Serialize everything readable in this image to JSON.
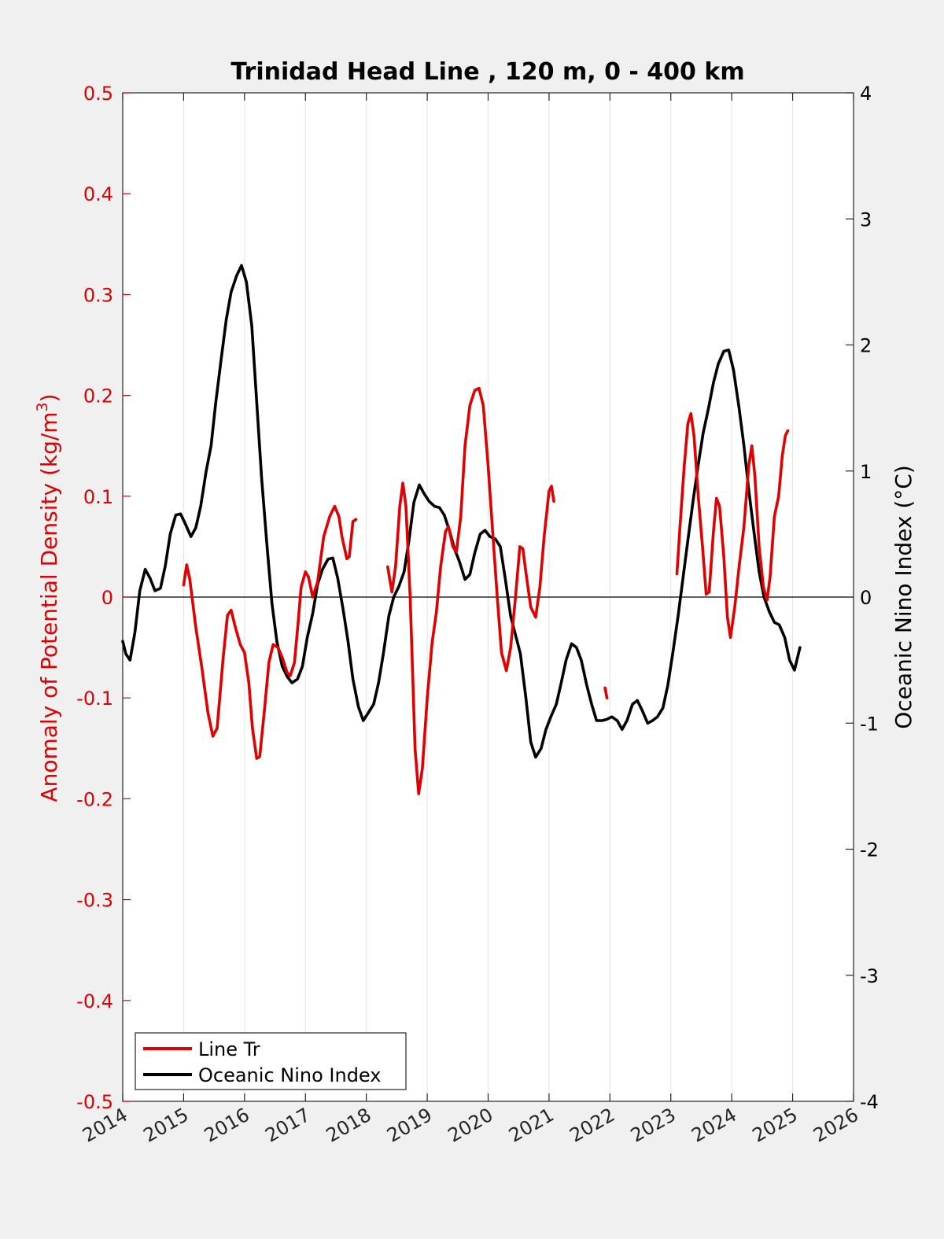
{
  "chart_data": {
    "type": "line",
    "title": "Trinidad Head Line , 120 m, 0 - 400 km",
    "ylabel_left": "Anomaly of Potential Density (kg/m",
    "ylabel_left_sup": "3",
    "ylabel_left_close": ")",
    "ylabel_right": "Oceanic Nino Index (°C)",
    "xlim": [
      2014,
      2026
    ],
    "ylim_left": [
      -0.5,
      0.5
    ],
    "ylim_right": [
      -4,
      4
    ],
    "x_ticks": [
      2014,
      2015,
      2016,
      2017,
      2018,
      2019,
      2020,
      2021,
      2022,
      2023,
      2024,
      2025,
      2026
    ],
    "x_tick_labels": [
      "2014",
      "2015",
      "2016",
      "2017",
      "2018",
      "2019",
      "2020",
      "2021",
      "2022",
      "2023",
      "2024",
      "2025",
      "2026"
    ],
    "y_left_ticks": [
      0.5,
      0.4,
      0.3,
      0.2,
      0.1,
      0,
      -0.1,
      -0.2,
      -0.3,
      -0.4,
      -0.5
    ],
    "y_left_tick_labels": [
      "0.5",
      "0.4",
      "0.3",
      "0.2",
      "0.1",
      "0",
      "-0.1",
      "-0.2",
      "-0.3",
      "-0.4",
      "-0.5"
    ],
    "y_right_ticks": [
      4,
      3,
      2,
      1,
      0,
      -1,
      -2,
      -3,
      -4
    ],
    "y_right_tick_labels": [
      "4",
      "3",
      "2",
      "1",
      "0",
      "-1",
      "-2",
      "-3",
      "-4"
    ],
    "grid": "vertical",
    "zero_line": true,
    "legend": "bottom-left",
    "colors": {
      "line_tr": "#e00000",
      "oni": "#000000",
      "left_axis": "#e00000",
      "right_axis": "#000000"
    },
    "series": [
      {
        "name": "Line Tr",
        "axis": "left",
        "segments": [
          [
            [
              2015.0,
              0.012
            ],
            [
              2015.05,
              0.032
            ],
            [
              2015.1,
              0.018
            ],
            [
              2015.2,
              -0.03
            ],
            [
              2015.3,
              -0.07
            ],
            [
              2015.4,
              -0.115
            ],
            [
              2015.48,
              -0.138
            ],
            [
              2015.55,
              -0.13
            ],
            [
              2015.65,
              -0.06
            ],
            [
              2015.72,
              -0.018
            ],
            [
              2015.78,
              -0.013
            ],
            [
              2015.85,
              -0.03
            ],
            [
              2015.93,
              -0.047
            ],
            [
              2016.0,
              -0.055
            ],
            [
              2016.07,
              -0.085
            ],
            [
              2016.13,
              -0.13
            ],
            [
              2016.2,
              -0.16
            ],
            [
              2016.25,
              -0.158
            ],
            [
              2016.33,
              -0.11
            ],
            [
              2016.4,
              -0.065
            ],
            [
              2016.47,
              -0.047
            ],
            [
              2016.55,
              -0.05
            ],
            [
              2016.62,
              -0.06
            ],
            [
              2016.7,
              -0.075
            ],
            [
              2016.75,
              -0.078
            ],
            [
              2016.82,
              -0.065
            ],
            [
              2016.88,
              -0.025
            ],
            [
              2016.93,
              0.01
            ],
            [
              2017.0,
              0.025
            ],
            [
              2017.05,
              0.02
            ],
            [
              2017.12,
              0.0
            ],
            [
              2017.2,
              0.015
            ],
            [
              2017.3,
              0.06
            ],
            [
              2017.4,
              0.08
            ],
            [
              2017.48,
              0.09
            ],
            [
              2017.55,
              0.08
            ],
            [
              2017.6,
              0.06
            ],
            [
              2017.68,
              0.038
            ],
            [
              2017.72,
              0.04
            ],
            [
              2017.78,
              0.075
            ],
            [
              2017.83,
              0.077
            ]
          ],
          [
            [
              2018.35,
              0.03
            ],
            [
              2018.42,
              0.005
            ],
            [
              2018.48,
              0.03
            ],
            [
              2018.55,
              0.09
            ],
            [
              2018.6,
              0.113
            ],
            [
              2018.65,
              0.09
            ],
            [
              2018.72,
              0.0
            ],
            [
              2018.8,
              -0.15
            ],
            [
              2018.86,
              -0.195
            ],
            [
              2018.92,
              -0.17
            ],
            [
              2019.0,
              -0.1
            ],
            [
              2019.08,
              -0.045
            ],
            [
              2019.15,
              -0.015
            ],
            [
              2019.22,
              0.03
            ],
            [
              2019.3,
              0.065
            ],
            [
              2019.35,
              0.07
            ],
            [
              2019.42,
              0.05
            ],
            [
              2019.48,
              0.045
            ],
            [
              2019.55,
              0.08
            ],
            [
              2019.62,
              0.15
            ],
            [
              2019.7,
              0.19
            ],
            [
              2019.78,
              0.205
            ],
            [
              2019.85,
              0.207
            ],
            [
              2019.92,
              0.19
            ],
            [
              2020.0,
              0.13
            ],
            [
              2020.08,
              0.06
            ],
            [
              2020.15,
              0.0
            ],
            [
              2020.22,
              -0.055
            ],
            [
              2020.3,
              -0.073
            ],
            [
              2020.37,
              -0.05
            ],
            [
              2020.45,
              0.0
            ],
            [
              2020.52,
              0.05
            ],
            [
              2020.57,
              0.048
            ],
            [
              2020.63,
              0.02
            ],
            [
              2020.7,
              -0.01
            ],
            [
              2020.78,
              -0.02
            ],
            [
              2020.85,
              0.01
            ],
            [
              2020.92,
              0.06
            ],
            [
              2021.0,
              0.105
            ],
            [
              2021.04,
              0.11
            ],
            [
              2021.08,
              0.095
            ]
          ],
          [
            [
              2021.92,
              -0.09
            ],
            [
              2021.95,
              -0.1
            ]
          ],
          [
            [
              2023.1,
              0.023
            ],
            [
              2023.15,
              0.07
            ],
            [
              2023.22,
              0.13
            ],
            [
              2023.28,
              0.172
            ],
            [
              2023.33,
              0.182
            ],
            [
              2023.38,
              0.16
            ],
            [
              2023.45,
              0.1
            ],
            [
              2023.52,
              0.05
            ],
            [
              2023.58,
              0.003
            ],
            [
              2023.63,
              0.005
            ],
            [
              2023.7,
              0.065
            ],
            [
              2023.75,
              0.098
            ],
            [
              2023.8,
              0.09
            ],
            [
              2023.87,
              0.04
            ],
            [
              2023.93,
              -0.02
            ],
            [
              2023.98,
              -0.04
            ],
            [
              2024.05,
              -0.01
            ],
            [
              2024.12,
              0.03
            ],
            [
              2024.2,
              0.07
            ],
            [
              2024.28,
              0.13
            ],
            [
              2024.33,
              0.15
            ],
            [
              2024.38,
              0.12
            ],
            [
              2024.45,
              0.05
            ],
            [
              2024.52,
              0.01
            ],
            [
              2024.58,
              -0.003
            ],
            [
              2024.63,
              0.02
            ],
            [
              2024.7,
              0.08
            ],
            [
              2024.77,
              0.1
            ],
            [
              2024.83,
              0.14
            ],
            [
              2024.88,
              0.16
            ],
            [
              2024.92,
              0.165
            ]
          ]
        ]
      },
      {
        "name": "Oceanic Nino Index",
        "axis": "right",
        "segments": [
          [
            [
              2014.0,
              -0.35
            ],
            [
              2014.05,
              -0.45
            ],
            [
              2014.12,
              -0.5
            ],
            [
              2014.2,
              -0.28
            ],
            [
              2014.28,
              0.05
            ],
            [
              2014.37,
              0.22
            ],
            [
              2014.45,
              0.15
            ],
            [
              2014.53,
              0.05
            ],
            [
              2014.62,
              0.07
            ],
            [
              2014.7,
              0.25
            ],
            [
              2014.78,
              0.5
            ],
            [
              2014.87,
              0.65
            ],
            [
              2014.95,
              0.66
            ],
            [
              2015.03,
              0.58
            ],
            [
              2015.12,
              0.48
            ],
            [
              2015.2,
              0.55
            ],
            [
              2015.28,
              0.72
            ],
            [
              2015.37,
              1.0
            ],
            [
              2015.45,
              1.2
            ],
            [
              2015.53,
              1.55
            ],
            [
              2015.62,
              1.9
            ],
            [
              2015.7,
              2.2
            ],
            [
              2015.78,
              2.42
            ],
            [
              2015.87,
              2.55
            ],
            [
              2015.95,
              2.63
            ],
            [
              2016.03,
              2.5
            ],
            [
              2016.12,
              2.15
            ],
            [
              2016.2,
              1.55
            ],
            [
              2016.28,
              0.95
            ],
            [
              2016.37,
              0.4
            ],
            [
              2016.45,
              -0.05
            ],
            [
              2016.53,
              -0.35
            ],
            [
              2016.62,
              -0.55
            ],
            [
              2016.7,
              -0.63
            ],
            [
              2016.78,
              -0.68
            ],
            [
              2016.87,
              -0.65
            ],
            [
              2016.95,
              -0.55
            ],
            [
              2017.03,
              -0.32
            ],
            [
              2017.12,
              -0.13
            ],
            [
              2017.2,
              0.1
            ],
            [
              2017.28,
              0.22
            ],
            [
              2017.37,
              0.3
            ],
            [
              2017.45,
              0.31
            ],
            [
              2017.53,
              0.15
            ],
            [
              2017.62,
              -0.1
            ],
            [
              2017.7,
              -0.35
            ],
            [
              2017.78,
              -0.65
            ],
            [
              2017.87,
              -0.87
            ],
            [
              2017.95,
              -0.98
            ],
            [
              2018.03,
              -0.92
            ],
            [
              2018.12,
              -0.85
            ],
            [
              2018.2,
              -0.68
            ],
            [
              2018.28,
              -0.45
            ],
            [
              2018.37,
              -0.15
            ],
            [
              2018.45,
              0.0
            ],
            [
              2018.53,
              0.08
            ],
            [
              2018.62,
              0.2
            ],
            [
              2018.7,
              0.45
            ],
            [
              2018.78,
              0.75
            ],
            [
              2018.87,
              0.89
            ],
            [
              2018.95,
              0.82
            ],
            [
              2019.03,
              0.76
            ],
            [
              2019.12,
              0.72
            ],
            [
              2019.2,
              0.71
            ],
            [
              2019.28,
              0.65
            ],
            [
              2019.37,
              0.52
            ],
            [
              2019.45,
              0.38
            ],
            [
              2019.53,
              0.28
            ],
            [
              2019.62,
              0.14
            ],
            [
              2019.7,
              0.18
            ],
            [
              2019.78,
              0.35
            ],
            [
              2019.87,
              0.5
            ],
            [
              2019.95,
              0.53
            ],
            [
              2020.03,
              0.48
            ],
            [
              2020.12,
              0.46
            ],
            [
              2020.2,
              0.4
            ],
            [
              2020.28,
              0.15
            ],
            [
              2020.37,
              -0.15
            ],
            [
              2020.45,
              -0.3
            ],
            [
              2020.53,
              -0.45
            ],
            [
              2020.62,
              -0.8
            ],
            [
              2020.7,
              -1.15
            ],
            [
              2020.78,
              -1.27
            ],
            [
              2020.87,
              -1.2
            ],
            [
              2020.95,
              -1.05
            ],
            [
              2021.03,
              -0.95
            ],
            [
              2021.12,
              -0.85
            ],
            [
              2021.2,
              -0.68
            ],
            [
              2021.28,
              -0.5
            ],
            [
              2021.37,
              -0.37
            ],
            [
              2021.45,
              -0.4
            ],
            [
              2021.53,
              -0.5
            ],
            [
              2021.62,
              -0.7
            ],
            [
              2021.7,
              -0.85
            ],
            [
              2021.78,
              -0.98
            ],
            [
              2021.87,
              -0.98
            ],
            [
              2021.95,
              -0.97
            ],
            [
              2022.03,
              -0.95
            ],
            [
              2022.12,
              -0.98
            ],
            [
              2022.2,
              -1.05
            ],
            [
              2022.28,
              -0.98
            ],
            [
              2022.37,
              -0.85
            ],
            [
              2022.45,
              -0.82
            ],
            [
              2022.53,
              -0.9
            ],
            [
              2022.62,
              -1.0
            ],
            [
              2022.7,
              -0.98
            ],
            [
              2022.78,
              -0.95
            ],
            [
              2022.87,
              -0.88
            ],
            [
              2022.95,
              -0.7
            ],
            [
              2023.03,
              -0.45
            ],
            [
              2023.12,
              -0.15
            ],
            [
              2023.2,
              0.15
            ],
            [
              2023.28,
              0.45
            ],
            [
              2023.37,
              0.78
            ],
            [
              2023.45,
              1.05
            ],
            [
              2023.53,
              1.3
            ],
            [
              2023.62,
              1.5
            ],
            [
              2023.7,
              1.7
            ],
            [
              2023.78,
              1.85
            ],
            [
              2023.87,
              1.95
            ],
            [
              2023.95,
              1.96
            ],
            [
              2024.03,
              1.8
            ],
            [
              2024.12,
              1.5
            ],
            [
              2024.2,
              1.2
            ],
            [
              2024.28,
              0.85
            ],
            [
              2024.37,
              0.5
            ],
            [
              2024.45,
              0.2
            ],
            [
              2024.53,
              0.0
            ],
            [
              2024.62,
              -0.12
            ],
            [
              2024.7,
              -0.2
            ],
            [
              2024.78,
              -0.22
            ],
            [
              2024.87,
              -0.32
            ],
            [
              2024.95,
              -0.5
            ],
            [
              2025.03,
              -0.58
            ],
            [
              2025.12,
              -0.4
            ]
          ]
        ]
      }
    ]
  }
}
